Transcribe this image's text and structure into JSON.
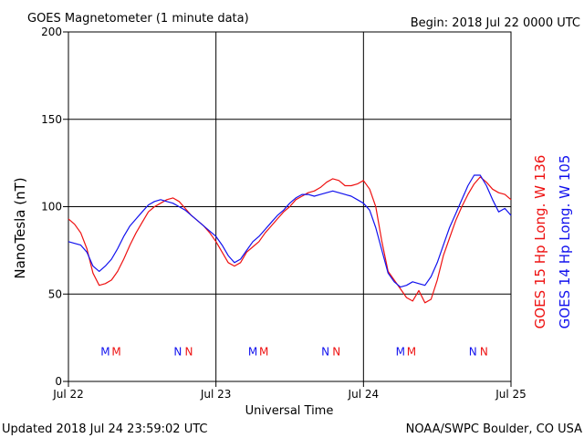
{
  "header": {
    "title": "GOES Magnetometer (1 minute data)",
    "begin": "Begin:  2018 Jul 22 0000 UTC"
  },
  "footer": {
    "updated": "Updated 2018 Jul 24 23:59:02 UTC",
    "credit": "NOAA/SWPC Boulder, CO USA"
  },
  "colors": {
    "goes15": "#ee1111",
    "goes14": "#1111ee"
  },
  "chart_data": {
    "type": "line",
    "xlabel": "Universal Time",
    "ylabel": "NanoTesla (nT)",
    "xlim": [
      0,
      72
    ],
    "ylim": [
      0,
      200
    ],
    "yticks": [
      0,
      50,
      100,
      150,
      200
    ],
    "xticks": [
      {
        "x": 0,
        "label": "Jul 22"
      },
      {
        "x": 24,
        "label": "Jul 23"
      },
      {
        "x": 48,
        "label": "Jul 24"
      },
      {
        "x": 72,
        "label": "Jul 25"
      }
    ],
    "grid": true,
    "series": [
      {
        "name": "GOES 15 Hp  Long. W 136",
        "color": "#ee1111",
        "x": [
          0,
          1,
          2,
          3,
          4,
          5,
          6,
          7,
          8,
          9,
          10,
          11,
          12,
          13,
          14,
          15,
          16,
          17,
          18,
          19,
          20,
          21,
          22,
          23,
          24,
          25,
          26,
          27,
          28,
          29,
          30,
          31,
          32,
          33,
          34,
          35,
          36,
          37,
          38,
          39,
          40,
          41,
          42,
          43,
          44,
          45,
          46,
          47,
          48,
          49,
          50,
          51,
          52,
          53,
          54,
          55,
          56,
          57,
          58,
          59,
          60,
          61,
          62,
          63,
          64,
          65,
          66,
          67,
          68,
          69,
          70,
          71,
          72
        ],
        "y": [
          93,
          90,
          85,
          76,
          62,
          55,
          56,
          58,
          63,
          70,
          78,
          85,
          91,
          97,
          100,
          102,
          104,
          105,
          103,
          99,
          95,
          92,
          89,
          85,
          80,
          74,
          68,
          66,
          68,
          74,
          77,
          80,
          85,
          89,
          93,
          97,
          100,
          104,
          106,
          108,
          109,
          111,
          114,
          116,
          115,
          112,
          112,
          113,
          115,
          110,
          100,
          80,
          63,
          58,
          53,
          48,
          46,
          52,
          45,
          47,
          58,
          72,
          82,
          92,
          100,
          107,
          113,
          117,
          114,
          110,
          108,
          107,
          104
        ]
      },
      {
        "name": "GOES 14 Hp  Long. W 105",
        "color": "#1111ee",
        "x": [
          0,
          1,
          2,
          3,
          4,
          5,
          6,
          7,
          8,
          9,
          10,
          11,
          12,
          13,
          14,
          15,
          16,
          17,
          18,
          19,
          20,
          21,
          22,
          23,
          24,
          25,
          26,
          27,
          28,
          29,
          30,
          31,
          32,
          33,
          34,
          35,
          36,
          37,
          38,
          39,
          40,
          41,
          42,
          43,
          44,
          45,
          46,
          47,
          48,
          49,
          50,
          51,
          52,
          53,
          54,
          55,
          56,
          57,
          58,
          59,
          60,
          61,
          62,
          63,
          64,
          65,
          66,
          67,
          68,
          69,
          70,
          71,
          72
        ],
        "y": [
          80,
          79,
          78,
          74,
          66,
          63,
          66,
          70,
          76,
          83,
          89,
          93,
          97,
          101,
          103,
          104,
          103,
          102,
          100,
          98,
          95,
          92,
          89,
          86,
          83,
          78,
          72,
          68,
          70,
          75,
          80,
          83,
          87,
          91,
          95,
          98,
          102,
          105,
          107,
          107,
          106,
          107,
          108,
          109,
          108,
          107,
          106,
          104,
          102,
          98,
          88,
          75,
          62,
          57,
          54,
          55,
          57,
          56,
          55,
          60,
          68,
          78,
          88,
          96,
          104,
          112,
          118,
          118,
          112,
          104,
          97,
          99,
          95
        ]
      }
    ],
    "annotations": [
      {
        "x": 6.0,
        "label": "M",
        "series": "GOES 14 Hp  Long. W 105"
      },
      {
        "x": 7.8,
        "label": "M",
        "series": "GOES 15 Hp  Long. W 136"
      },
      {
        "x": 17.8,
        "label": "N",
        "series": "GOES 14 Hp  Long. W 105"
      },
      {
        "x": 19.6,
        "label": "N",
        "series": "GOES 15 Hp  Long. W 136"
      },
      {
        "x": 30.0,
        "label": "M",
        "series": "GOES 14 Hp  Long. W 105"
      },
      {
        "x": 31.8,
        "label": "M",
        "series": "GOES 15 Hp  Long. W 136"
      },
      {
        "x": 41.8,
        "label": "N",
        "series": "GOES 14 Hp  Long. W 105"
      },
      {
        "x": 43.6,
        "label": "N",
        "series": "GOES 15 Hp  Long. W 136"
      },
      {
        "x": 54.0,
        "label": "M",
        "series": "GOES 14 Hp  Long. W 105"
      },
      {
        "x": 55.8,
        "label": "M",
        "series": "GOES 15 Hp  Long. W 136"
      },
      {
        "x": 65.8,
        "label": "N",
        "series": "GOES 14 Hp  Long. W 105"
      },
      {
        "x": 67.6,
        "label": "N",
        "series": "GOES 15 Hp  Long. W 136"
      }
    ],
    "annotation_level": 17
  }
}
